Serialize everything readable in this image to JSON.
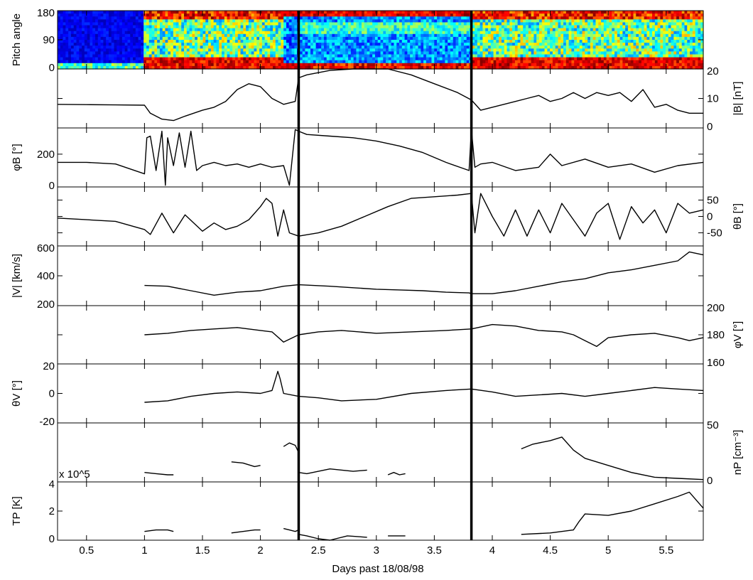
{
  "chart_data": {
    "type": "line",
    "xlabel": "Days past 18/08/98",
    "xlim": [
      0.25,
      5.82
    ],
    "xticks": [
      "0.5",
      "1",
      "1.5",
      "2",
      "2.5",
      "3",
      "3.5",
      "4",
      "4.5",
      "5",
      "5.5"
    ],
    "xtick_values": [
      0.5,
      1,
      1.5,
      2,
      2.5,
      3,
      3.5,
      4,
      4.5,
      5,
      5.5
    ],
    "vertical_markers": [
      2.33,
      3.82
    ],
    "panels": [
      {
        "key": "pitch",
        "type": "heatmap",
        "ylabel": "Pitch angle",
        "ylabel_side": "left",
        "ylim": [
          0,
          180
        ],
        "yticks": [
          0,
          90,
          180
        ],
        "ytick_labels": [
          "0",
          "90",
          "180"
        ],
        "ytick_side": "left",
        "segments": [
          {
            "x": [
              0.25,
              1.0
            ],
            "state": "blue"
          },
          {
            "x": [
              1.0,
              2.2
            ],
            "state": "mixed"
          },
          {
            "x": [
              2.2,
              2.33
            ],
            "state": "mixed-blue"
          },
          {
            "x": [
              2.33,
              3.82
            ],
            "state": "blue-red-edges"
          },
          {
            "x": [
              3.82,
              5.82
            ],
            "state": "mixed"
          }
        ]
      },
      {
        "key": "B",
        "ylabel": "|B| [nT]",
        "ylabel_side": "right",
        "ylim": [
          0,
          20
        ],
        "yticks": [
          0,
          10,
          20
        ],
        "ytick_labels": [
          "0",
          "10",
          "20"
        ],
        "ytick_side": "right",
        "series": [
          {
            "x": [
              0.25,
              0.5,
              0.75,
              1.0,
              1.05,
              1.15,
              1.25,
              1.35,
              1.5,
              1.6,
              1.7,
              1.8,
              1.9,
              2.0,
              2.1,
              2.2,
              2.3,
              2.33,
              2.4,
              2.6,
              2.8,
              2.95,
              3.1,
              3.3,
              3.5,
              3.7,
              3.82,
              3.9,
              4.0,
              4.1,
              4.2,
              4.3,
              4.4,
              4.5,
              4.6,
              4.7,
              4.8,
              4.9,
              5.0,
              5.1,
              5.2,
              5.3,
              5.4,
              5.5,
              5.6,
              5.7,
              5.82
            ],
            "y": [
              8,
              7.9,
              7.8,
              7.7,
              5,
              3,
              2.5,
              4,
              6,
              7,
              9,
              13,
              15,
              14,
              10,
              8,
              9,
              17,
              18,
              19.5,
              20.5,
              21,
              20,
              18,
              15,
              12,
              9.5,
              6,
              7,
              8,
              9,
              10,
              11,
              9,
              10,
              12,
              10,
              12,
              11,
              12,
              9,
              13,
              7,
              8,
              6,
              5,
              5
            ]
          }
        ]
      },
      {
        "key": "phiB",
        "ylabel": "φB [°]",
        "ylabel_side": "left",
        "ylim": [
          0,
          360
        ],
        "yticks": [
          0,
          200
        ],
        "ytick_labels": [
          "0",
          "200"
        ],
        "ytick_side": "left",
        "series": [
          {
            "x": [
              0.25,
              0.5,
              0.75,
              1.0,
              1.02,
              1.05,
              1.1,
              1.15,
              1.18,
              1.2,
              1.25,
              1.3,
              1.35,
              1.4,
              1.45,
              1.5,
              1.6,
              1.7,
              1.8,
              1.9,
              2.0,
              2.1,
              2.2,
              2.25,
              2.3,
              2.33,
              2.4,
              2.6,
              2.8,
              3.0,
              3.2,
              3.4,
              3.6,
              3.8,
              3.82,
              3.85,
              3.9,
              4.0,
              4.2,
              4.4,
              4.5,
              4.6,
              4.8,
              5.0,
              5.2,
              5.4,
              5.6,
              5.82
            ],
            "y": [
              150,
              150,
              140,
              80,
              300,
              310,
              100,
              340,
              10,
              300,
              130,
              330,
              120,
              340,
              100,
              130,
              150,
              130,
              140,
              120,
              140,
              120,
              130,
              10,
              350,
              340,
              320,
              310,
              300,
              280,
              250,
              210,
              150,
              100,
              350,
              120,
              140,
              150,
              100,
              120,
              200,
              130,
              170,
              120,
              140,
              90,
              130,
              150
            ]
          }
        ]
      },
      {
        "key": "thetaB",
        "ylabel": "θB [°]",
        "ylabel_side": "right",
        "ylim": [
          -90,
          90
        ],
        "yticks": [
          -50,
          0,
          50
        ],
        "ytick_labels": [
          "-50",
          "0",
          "50"
        ],
        "ytick_side": "right",
        "series": [
          {
            "x": [
              0.25,
              0.5,
              0.75,
              1.0,
              1.05,
              1.15,
              1.25,
              1.35,
              1.5,
              1.6,
              1.7,
              1.8,
              1.9,
              2.0,
              2.05,
              2.1,
              2.15,
              2.2,
              2.25,
              2.33,
              2.5,
              2.7,
              2.9,
              3.1,
              3.3,
              3.5,
              3.7,
              3.82,
              3.85,
              3.9,
              4.0,
              4.1,
              4.2,
              4.3,
              4.4,
              4.5,
              4.6,
              4.7,
              4.8,
              4.9,
              5.0,
              5.1,
              5.2,
              5.3,
              5.4,
              5.5,
              5.6,
              5.7,
              5.82
            ],
            "y": [
              -5,
              -10,
              -15,
              -40,
              -55,
              10,
              -50,
              5,
              -45,
              -20,
              -40,
              -30,
              -10,
              30,
              55,
              40,
              -60,
              20,
              -50,
              -60,
              -50,
              -30,
              0,
              30,
              55,
              60,
              65,
              70,
              -50,
              70,
              0,
              -60,
              20,
              -60,
              20,
              -50,
              40,
              -10,
              -60,
              10,
              40,
              -70,
              30,
              -20,
              20,
              -50,
              40,
              10,
              20
            ]
          }
        ]
      },
      {
        "key": "V",
        "ylabel": "|V| [km/s]",
        "ylabel_side": "left",
        "ylim": [
          200,
          600
        ],
        "yticks": [
          200,
          400,
          600
        ],
        "ytick_labels": [
          "200",
          "400",
          "600"
        ],
        "ytick_side": "left",
        "series": [
          {
            "x": [
              1.0,
              1.2,
              1.4,
              1.6,
              1.8,
              2.0,
              2.2,
              2.33,
              2.6,
              2.8,
              3.0,
              3.2,
              3.4,
              3.6,
              3.8,
              3.82,
              4.0,
              4.2,
              4.4,
              4.6,
              4.8,
              5.0,
              5.2,
              5.4,
              5.6,
              5.7,
              5.82
            ],
            "y": [
              335,
              330,
              300,
              270,
              290,
              300,
              330,
              340,
              330,
              320,
              310,
              305,
              300,
              290,
              285,
              280,
              280,
              300,
              330,
              360,
              380,
              420,
              440,
              470,
              500,
              560,
              540
            ]
          }
        ]
      },
      {
        "key": "phiV",
        "ylabel": "φV [°]",
        "ylabel_side": "right",
        "ylim": [
          160,
          200
        ],
        "yticks": [
          160,
          180,
          200
        ],
        "ytick_labels": [
          "160",
          "180",
          "200"
        ],
        "ytick_side": "right",
        "series": [
          {
            "x": [
              1.0,
              1.2,
              1.4,
              1.6,
              1.8,
              2.0,
              2.1,
              2.2,
              2.33,
              2.5,
              2.7,
              3.0,
              3.3,
              3.6,
              3.82,
              4.0,
              4.2,
              4.4,
              4.6,
              4.7,
              4.8,
              4.9,
              5.0,
              5.2,
              5.4,
              5.6,
              5.7,
              5.82
            ],
            "y": [
              180,
              181,
              183,
              184,
              185,
              183,
              182,
              175,
              180,
              182,
              183,
              181,
              182,
              183,
              184,
              187,
              186,
              183,
              182,
              180,
              176,
              172,
              178,
              180,
              181,
              178,
              176,
              178
            ]
          }
        ]
      },
      {
        "key": "thetaV",
        "ylabel": "θV [°]",
        "ylabel_side": "left",
        "ylim": [
          -20,
          20
        ],
        "yticks": [
          -20,
          0,
          20
        ],
        "ytick_labels": [
          "-20",
          "0",
          "20"
        ],
        "ytick_side": "left",
        "series": [
          {
            "x": [
              1.0,
              1.2,
              1.4,
              1.6,
              1.8,
              2.0,
              2.1,
              2.15,
              2.17,
              2.2,
              2.33,
              2.5,
              2.7,
              3.0,
              3.3,
              3.6,
              3.82,
              4.0,
              4.2,
              4.4,
              4.6,
              4.8,
              5.0,
              5.2,
              5.4,
              5.6,
              5.82
            ],
            "y": [
              -6,
              -5,
              -2,
              0,
              1,
              0,
              2,
              15,
              10,
              0,
              -2,
              -3,
              -5,
              -4,
              0,
              2,
              3,
              1,
              -2,
              -1,
              0,
              -2,
              0,
              2,
              4,
              3,
              2
            ]
          }
        ]
      },
      {
        "key": "np",
        "ylabel": "nP [cm⁻³]",
        "ylabel_side": "right",
        "ylim": [
          0,
          50
        ],
        "yticks": [
          0,
          50
        ],
        "ytick_labels": [
          "0",
          "50"
        ],
        "ytick_side": "right",
        "series": [
          {
            "x": [
              1.0,
              1.1,
              1.2,
              1.25
            ],
            "y": [
              8,
              7,
              6,
              6
            ]
          },
          {
            "x": [
              1.75,
              1.85,
              1.95,
              2.0
            ],
            "y": [
              17,
              16,
              13,
              14
            ]
          },
          {
            "x": [
              2.2,
              2.25,
              2.3,
              2.33
            ],
            "y": [
              30,
              33,
              31,
              25
            ]
          },
          {
            "x": [
              2.33,
              2.4,
              2.6,
              2.8,
              2.92
            ],
            "y": [
              8,
              7,
              11,
              9,
              10
            ]
          },
          {
            "x": [
              3.1,
              3.15,
              3.2,
              3.25
            ],
            "y": [
              6,
              8,
              6,
              7
            ]
          },
          {
            "x": [
              4.25,
              4.35,
              4.5,
              4.6,
              4.7,
              4.8,
              5.0,
              5.2,
              5.4,
              5.6,
              5.82
            ],
            "y": [
              28,
              32,
              35,
              38,
              27,
              20,
              14,
              8,
              4,
              3,
              2
            ]
          }
        ]
      },
      {
        "key": "Tp",
        "ylabel": "TP [K]",
        "ylabel_side": "left",
        "ylim": [
          0,
          4
        ],
        "yticks": [
          0,
          2,
          4
        ],
        "ytick_labels": [
          "0",
          "2",
          "4"
        ],
        "ytick_side": "left",
        "scale_label": "x 10^5",
        "series": [
          {
            "x": [
              1.0,
              1.1,
              1.2,
              1.25
            ],
            "y": [
              0.6,
              0.7,
              0.7,
              0.6
            ]
          },
          {
            "x": [
              1.75,
              1.85,
              1.95,
              2.0
            ],
            "y": [
              0.5,
              0.6,
              0.7,
              0.7
            ]
          },
          {
            "x": [
              2.2,
              2.25,
              2.3,
              2.33
            ],
            "y": [
              0.8,
              0.7,
              0.6,
              0.7
            ]
          },
          {
            "x": [
              2.33,
              2.4,
              2.5,
              2.6,
              2.75,
              2.92
            ],
            "y": [
              0.4,
              0.3,
              0.1,
              0.0,
              0.3,
              0.2
            ]
          },
          {
            "x": [
              3.1,
              3.2,
              3.25
            ],
            "y": [
              0.3,
              0.3,
              0.3
            ]
          },
          {
            "x": [
              4.25,
              4.5,
              4.7,
              4.75,
              4.8,
              5.0,
              5.2,
              5.4,
              5.6,
              5.7,
              5.82
            ],
            "y": [
              0.4,
              0.5,
              0.7,
              1.3,
              1.8,
              1.7,
              2.0,
              2.5,
              3.0,
              3.3,
              2.2
            ]
          }
        ]
      }
    ]
  }
}
